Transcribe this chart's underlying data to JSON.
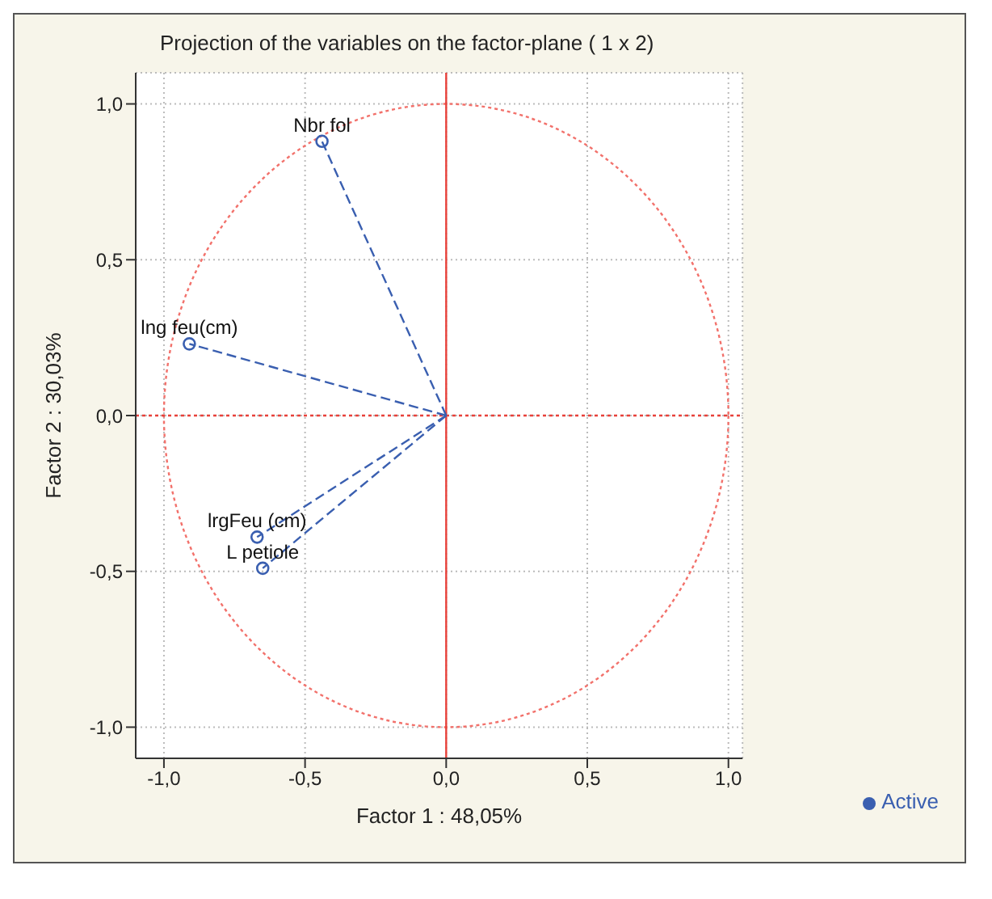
{
  "chart_data": {
    "type": "scatter",
    "title": "Projection of the variables on the factor-plane (  1 x   2)",
    "xlabel": "Factor 1 : 48,05%",
    "ylabel": "Factor 2 : 30,03%",
    "xlim": [
      -1.1,
      1.05
    ],
    "ylim": [
      -1.1,
      1.1
    ],
    "xticks": [
      {
        "value": -1,
        "label": "-1,0"
      },
      {
        "value": -0.5,
        "label": "-0,5"
      },
      {
        "value": 0,
        "label": "0,0"
      },
      {
        "value": 0.5,
        "label": "0,5"
      },
      {
        "value": 1,
        "label": "1,0"
      }
    ],
    "yticks": [
      {
        "value": -1,
        "label": "-1,0"
      },
      {
        "value": -0.5,
        "label": "-0,5"
      },
      {
        "value": 0,
        "label": "0,0"
      },
      {
        "value": 0.5,
        "label": "0,5"
      },
      {
        "value": 1,
        "label": "1,0"
      }
    ],
    "grid": true,
    "legend": "bottom right",
    "marker": "circle",
    "ref_lines": [
      {
        "axis": "x",
        "value": 0,
        "color": "#e8413a",
        "line_style": "solid"
      },
      {
        "axis": "y",
        "value": 0,
        "color": "#e8413a",
        "line_style": "dotted"
      }
    ],
    "series": [
      {
        "type": "line",
        "color": "#3a5fb0",
        "line_style": "dashed",
        "marker": "none",
        "x": [
          0,
          -0.44
        ],
        "values": [
          0,
          0.88
        ]
      },
      {
        "type": "line",
        "color": "#3a5fb0",
        "line_style": "dashed",
        "marker": "none",
        "x": [
          0,
          -0.91
        ],
        "values": [
          0,
          0.23
        ]
      },
      {
        "type": "line",
        "color": "#3a5fb0",
        "line_style": "dashed",
        "marker": "none",
        "x": [
          0,
          -0.67
        ],
        "values": [
          0,
          -0.39
        ]
      },
      {
        "type": "line",
        "color": "#3a5fb0",
        "line_style": "dashed",
        "marker": "none",
        "x": [
          0,
          -0.65
        ],
        "values": [
          0,
          -0.49
        ]
      },
      {
        "type": "scatter",
        "name": "Active",
        "color": "#3a5fb0",
        "x": [
          -0.44,
          -0.91,
          -0.67,
          -0.65
        ],
        "values": [
          0.88,
          0.23,
          -0.39,
          -0.49
        ]
      }
    ],
    "annotations": [
      {
        "text": "Nbr fol",
        "x": -0.44,
        "y": 0.88
      },
      {
        "text": "lng feu(cm)",
        "x": -0.91,
        "y": 0.23
      },
      {
        "text": "lrgFeu (cm)",
        "x": -0.67,
        "y": -0.39
      },
      {
        "text": "L petiole",
        "x": -0.65,
        "y": -0.49
      }
    ]
  }
}
